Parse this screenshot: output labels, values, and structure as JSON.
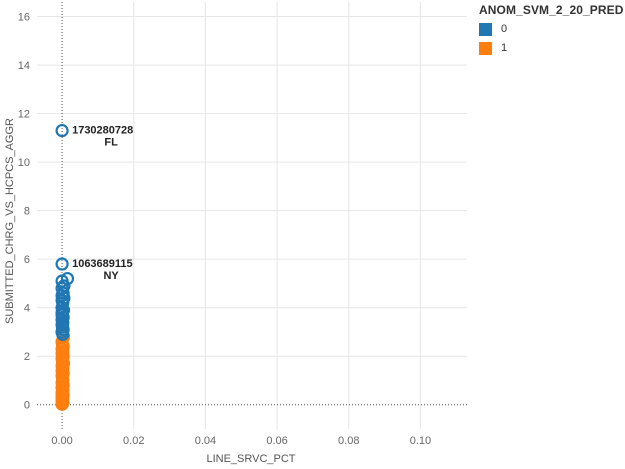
{
  "chart_data": {
    "type": "scatter",
    "title": "",
    "xlabel": "LINE_SRVC_PCT",
    "ylabel": "SUBMITTED_CHRG_VS_HCPCS_AGGR",
    "xlim": [
      -0.007,
      0.113
    ],
    "ylim": [
      -1.0,
      16.6
    ],
    "xticks": [
      0.0,
      0.02,
      0.04,
      0.06,
      0.08,
      0.1
    ],
    "xtick_labels": [
      "0.00",
      "0.02",
      "0.04",
      "0.06",
      "0.08",
      "0.10"
    ],
    "yticks": [
      0,
      2,
      4,
      6,
      8,
      10,
      12,
      14,
      16
    ],
    "ytick_labels": [
      "0",
      "2",
      "4",
      "6",
      "8",
      "10",
      "12",
      "14",
      "16"
    ],
    "grid": true,
    "legend": {
      "title": "ANOM_SVM_2_20_PRED",
      "position": "right",
      "entries": [
        {
          "label": "0",
          "color": "#1f77b4"
        },
        {
          "label": "1",
          "color": "#ff7f0e"
        }
      ]
    },
    "series": [
      {
        "name": "0",
        "color": "#1f77b4",
        "x": [
          0,
          0,
          0.0015,
          0,
          0.0005,
          0,
          0.0003,
          0,
          0.0005,
          0,
          0.0002,
          0,
          0.0004,
          0,
          0,
          0.0003,
          0,
          0.0002,
          0,
          0.0001,
          0.0003,
          0,
          0.0002
        ],
        "y": [
          11.3,
          5.8,
          5.2,
          5.1,
          4.9,
          4.8,
          4.6,
          4.5,
          4.4,
          4.3,
          4.2,
          4.0,
          3.9,
          3.8,
          3.7,
          3.6,
          3.5,
          3.4,
          3.3,
          3.2,
          3.1,
          3.0,
          2.9
        ]
      },
      {
        "name": "1",
        "color": "#ff7f0e",
        "x": [
          0.0002,
          0,
          0.0004,
          0,
          0.0001,
          0.0003,
          0,
          0.0002,
          0,
          0.0003,
          0,
          0.0001,
          0.0004,
          0,
          0.0002,
          0,
          0.0003,
          0,
          0.0001,
          0.0002,
          0,
          0.0003,
          0,
          0.0002,
          0,
          0.0001,
          0.0003,
          0,
          0.0002,
          0,
          0.0001,
          0,
          0.0002,
          0,
          0.0001,
          0
        ],
        "y": [
          3.3,
          3.0,
          2.8,
          2.6,
          2.5,
          2.4,
          2.3,
          2.2,
          2.1,
          2.0,
          1.9,
          1.8,
          1.7,
          1.6,
          1.5,
          1.4,
          1.3,
          1.2,
          1.1,
          1.0,
          0.9,
          0.8,
          0.7,
          0.6,
          0.5,
          0.45,
          0.4,
          0.35,
          0.3,
          0.25,
          0.2,
          0.15,
          0.1,
          0.07,
          0.04,
          0.02
        ]
      }
    ],
    "annotations": [
      {
        "x": 0,
        "y": 11.3,
        "lines": [
          "1730280728",
          "FL"
        ]
      },
      {
        "x": 0,
        "y": 5.8,
        "lines": [
          "1063689115",
          "NY"
        ]
      }
    ]
  }
}
